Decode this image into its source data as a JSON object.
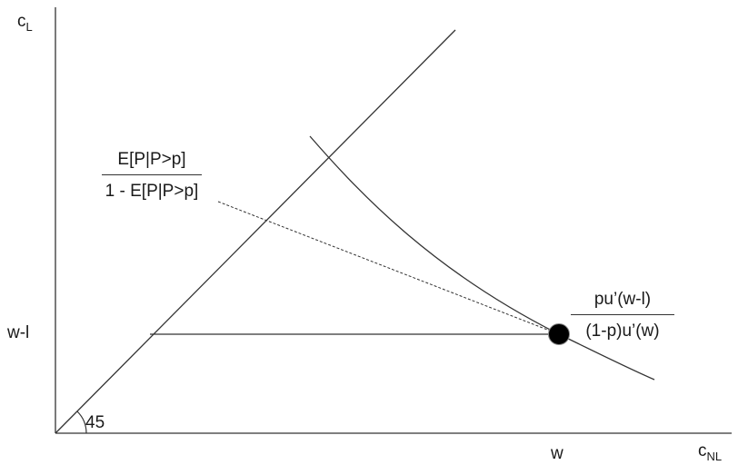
{
  "axes": {
    "y_label_main": "c",
    "y_label_sub": "L",
    "x_label_main": "c",
    "x_label_sub": "NL"
  },
  "ticks": {
    "y_tick": "w-l",
    "x_tick": "w"
  },
  "angle_label": "45",
  "left_fraction": {
    "numerator": "E[P|P>p]",
    "denominator": "1 - E[P|P>p]"
  },
  "right_fraction": {
    "numerator": "pu’(w-l)",
    "denominator": "(1-p)u’(w)"
  },
  "colors": {
    "line": "#333333",
    "point": "#000000"
  }
}
